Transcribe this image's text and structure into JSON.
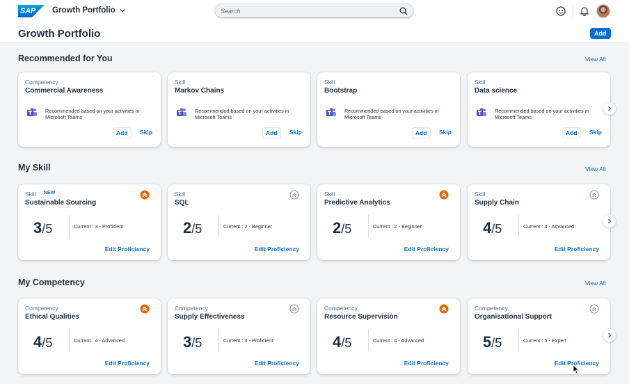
{
  "shell": {
    "logo_text": "SAP",
    "app_title": "Growth Portfolio",
    "search_placeholder": "Search"
  },
  "page": {
    "title": "Growth Portfolio",
    "add_label": "Add"
  },
  "recommended": {
    "title": "Recommended for You",
    "view_all": "View All",
    "text": "Recommended based on your activities in Microsoft Teams",
    "add_label": "Add",
    "skip_label": "Skip",
    "cards": [
      {
        "type": "Competency",
        "name": "Commercial Awareness"
      },
      {
        "type": "Skill",
        "name": "Markov Chains"
      },
      {
        "type": "Skill",
        "name": "Bootstrap"
      },
      {
        "type": "Skill",
        "name": "Data science"
      }
    ]
  },
  "my_skill": {
    "title": "My Skill",
    "view_all": "View All",
    "new_tag": "NEW",
    "edit_label": "Edit Proficiency",
    "cards": [
      {
        "type": "Skill",
        "name": "Sustainable Sourcing",
        "score": "3",
        "denom": "/5",
        "current": "Current : 3 - Proficient",
        "icon": "orange-up"
      },
      {
        "type": "Skill",
        "name": "SQL",
        "score": "2",
        "denom": "/5",
        "current": "Current : 2 - Beginner",
        "icon": "grey-up"
      },
      {
        "type": "Skill",
        "name": "Predictive Analytics",
        "score": "2",
        "denom": "/5",
        "current": "Current : 2 - Beginner",
        "icon": "orange-up"
      },
      {
        "type": "Skill",
        "name": "Supply Chain",
        "score": "4",
        "denom": "/5",
        "current": "Current : 4 - Advanced",
        "icon": "grey-up"
      }
    ]
  },
  "my_competency": {
    "title": "My Competency",
    "view_all": "View All",
    "edit_label": "Edit Proficiency",
    "cards": [
      {
        "type": "Competency",
        "name": "Ethical Qualities",
        "score": "4",
        "denom": "/5",
        "current": "Current : 4 - Advanced",
        "icon": "orange-up"
      },
      {
        "type": "Competency",
        "name": "Supply Effectiveness",
        "score": "3",
        "denom": "/5",
        "current": "Current : 3 - Proficient",
        "icon": "grey-up"
      },
      {
        "type": "Competency",
        "name": "Resource Supervision",
        "score": "4",
        "denom": "/5",
        "current": "Current : 4 - Advanced",
        "icon": "orange-up"
      },
      {
        "type": "Competency",
        "name": "Organisational Support",
        "score": "5",
        "denom": "/5",
        "current": "Current : 5 - Expert",
        "icon": "grey-up"
      }
    ]
  },
  "colors": {
    "accent": "#0a6ed1",
    "warning": "#e76500",
    "neutral_icon": "#8396a8"
  }
}
